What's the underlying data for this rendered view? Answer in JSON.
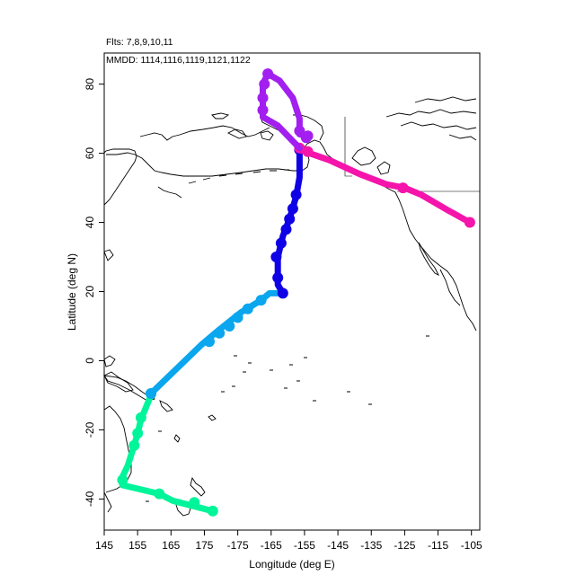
{
  "header": {
    "flights_label": "Flts: 7,8,9,10,11",
    "dates_label": "MMDD: 1114,1116,1119,1121,1122"
  },
  "chart_data": {
    "type": "line",
    "xlabel": "Longitude (deg E)",
    "ylabel": "Latitude (deg N)",
    "xlim": [
      145,
      257.5
    ],
    "ylim": [
      -49,
      89
    ],
    "x_ticks": [
      145,
      155,
      165,
      175,
      185,
      195,
      205,
      215,
      225,
      235,
      245,
      255
    ],
    "x_tick_labels": [
      "145",
      "155",
      "165",
      "175",
      "-175",
      "-165",
      "-155",
      "-145",
      "-135",
      "-125",
      "-115",
      "-105"
    ],
    "y_ticks": [
      -40,
      -20,
      0,
      20,
      40,
      60,
      80
    ],
    "y_tick_labels": [
      "-40",
      "-20",
      "0",
      "20",
      "40",
      "60",
      "80"
    ],
    "grid": false,
    "legend": "none",
    "series": [
      {
        "color": "#00f59a",
        "line": [
          [
            177.5,
            -43.5
          ],
          [
            165.5,
            -40.5
          ],
          [
            161.5,
            -38.5
          ],
          [
            150.5,
            -36.0
          ],
          [
            150.0,
            -34.5
          ],
          [
            152.0,
            -30.5
          ],
          [
            154.0,
            -24.5
          ],
          [
            155.0,
            -21.0
          ],
          [
            156.0,
            -17.0
          ],
          [
            159.0,
            -10.0
          ]
        ],
        "markers": [
          [
            177.5,
            -43.5
          ],
          [
            172.0,
            -41.0
          ],
          [
            161.5,
            -38.5
          ],
          [
            150.5,
            -34.5
          ],
          [
            154.0,
            -24.5
          ],
          [
            155.0,
            -21.0
          ],
          [
            156.0,
            -16.5
          ],
          [
            159.0,
            -9.5
          ]
        ]
      },
      {
        "color": "#0aa6ee",
        "line": [
          [
            159.0,
            -9.5
          ],
          [
            174.0,
            4.5
          ],
          [
            179.5,
            9.0
          ],
          [
            186.0,
            14.0
          ],
          [
            192.0,
            17.5
          ],
          [
            194.5,
            19.5
          ],
          [
            199.0,
            19.5
          ]
        ],
        "markers": [
          [
            159.0,
            -9.5
          ],
          [
            176.5,
            5.5
          ],
          [
            179.5,
            8.0
          ],
          [
            182.5,
            10.0
          ],
          [
            185.0,
            12.5
          ],
          [
            188.0,
            15.0
          ],
          [
            192.0,
            17.5
          ]
        ]
      },
      {
        "color": "#0f00e6",
        "line": [
          [
            198.5,
            19.5
          ],
          [
            197.0,
            22.0
          ],
          [
            197.0,
            30.0
          ],
          [
            198.5,
            36.0
          ],
          [
            200.5,
            41.0
          ],
          [
            202.5,
            47.5
          ],
          [
            203.5,
            53.0
          ],
          [
            203.5,
            61.0
          ]
        ],
        "markers": [
          [
            198.5,
            19.5
          ],
          [
            197.0,
            24.0
          ],
          [
            196.5,
            30.0
          ],
          [
            198.0,
            34.0
          ],
          [
            199.5,
            38.0
          ],
          [
            200.5,
            41.0
          ],
          [
            201.5,
            44.0
          ],
          [
            202.5,
            48.0
          ],
          [
            203.5,
            61.0
          ]
        ]
      },
      {
        "color": "#f515ab",
        "line": [
          [
            203.5,
            61.0
          ],
          [
            212.5,
            58.0
          ],
          [
            221.5,
            54.0
          ],
          [
            229.5,
            51.0
          ],
          [
            235.0,
            50.0
          ],
          [
            240.0,
            48.0
          ],
          [
            248.0,
            43.5
          ],
          [
            254.5,
            40.0
          ]
        ],
        "markers": [
          [
            203.5,
            61.5
          ],
          [
            206.0,
            60.5
          ],
          [
            234.5,
            50.0
          ],
          [
            254.5,
            40.0
          ]
        ]
      },
      {
        "color": "#a21ff0",
        "line": [
          [
            206.0,
            65.0
          ],
          [
            203.5,
            65.5
          ],
          [
            203.5,
            70.0
          ],
          [
            201.5,
            76.0
          ],
          [
            197.5,
            81.0
          ],
          [
            194.0,
            83.0
          ],
          [
            192.5,
            80.0
          ],
          [
            192.5,
            75.0
          ],
          [
            192.5,
            70.5
          ],
          [
            197.0,
            68.0
          ],
          [
            203.5,
            61.5
          ]
        ],
        "markers": [
          [
            194.0,
            83.0
          ],
          [
            193.0,
            80.0
          ],
          [
            192.5,
            76.0
          ],
          [
            192.5,
            72.5
          ],
          [
            203.5,
            66.5
          ],
          [
            205.5,
            64.5
          ],
          [
            206.0,
            65.0
          ]
        ]
      }
    ]
  },
  "map": {
    "coastline_color": "#000000",
    "background": "#ffffff"
  }
}
